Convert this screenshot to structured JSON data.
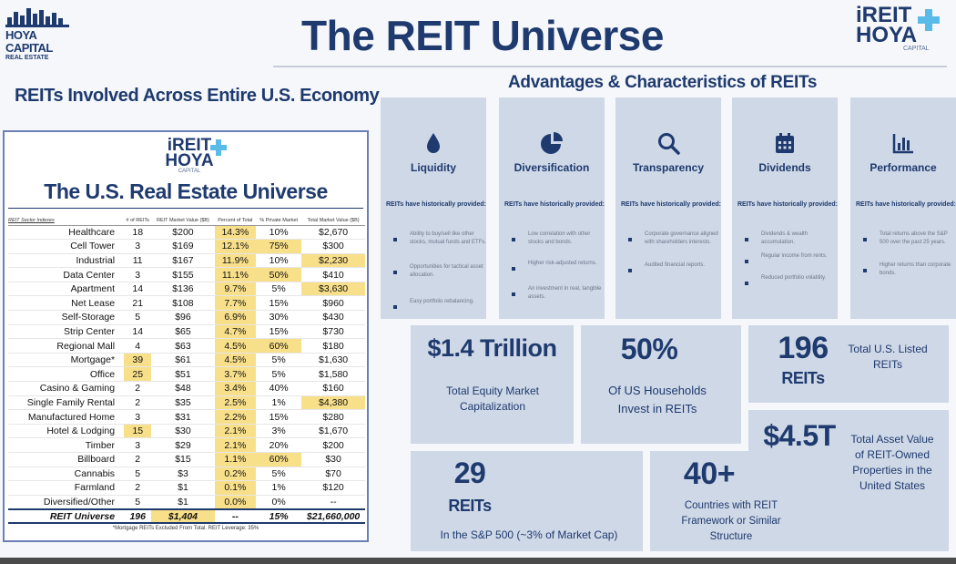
{
  "header": {
    "hoya_name": "HOYA CAPITAL",
    "hoya_sub": "REAL ESTATE",
    "title": "The REIT Universe",
    "logo_top": "iREIT",
    "logo_bottom": "HOYA",
    "logo_caption": "CAPITAL"
  },
  "left_heading": "REITs Involved Across Entire U.S. Economy",
  "right_heading": "Advantages & Characteristics of REITs",
  "table_panel": {
    "logo_top": "iREIT",
    "logo_bottom": "HOYA",
    "logo_caption": "CAPITAL",
    "title": "The U.S. Real Estate Universe",
    "columns": [
      "REIT Sector Indexes",
      "# of REITs",
      "REIT Market Value ($B)",
      "Percent of Total",
      "% Private Market",
      "Total Market Value ($B)"
    ],
    "rows": [
      {
        "sector": "Healthcare",
        "count": "18",
        "value": "$200",
        "pct": "14.3%",
        "private": "10%",
        "total": "$2,670"
      },
      {
        "sector": "Cell Tower",
        "count": "3",
        "value": "$169",
        "pct": "12.1%",
        "private": "75%",
        "total": "$300"
      },
      {
        "sector": "Industrial",
        "count": "11",
        "value": "$167",
        "pct": "11.9%",
        "private": "10%",
        "total": "$2,230"
      },
      {
        "sector": "Data Center",
        "count": "3",
        "value": "$155",
        "pct": "11.1%",
        "private": "50%",
        "total": "$410"
      },
      {
        "sector": "Apartment",
        "count": "14",
        "value": "$136",
        "pct": "9.7%",
        "private": "5%",
        "total": "$3,630"
      },
      {
        "sector": "Net Lease",
        "count": "21",
        "value": "$108",
        "pct": "7.7%",
        "private": "15%",
        "total": "$960"
      },
      {
        "sector": "Self-Storage",
        "count": "5",
        "value": "$96",
        "pct": "6.9%",
        "private": "30%",
        "total": "$430"
      },
      {
        "sector": "Strip Center",
        "count": "14",
        "value": "$65",
        "pct": "4.7%",
        "private": "15%",
        "total": "$730"
      },
      {
        "sector": "Regional Mall",
        "count": "4",
        "value": "$63",
        "pct": "4.5%",
        "private": "60%",
        "total": "$180"
      },
      {
        "sector": "Mortgage*",
        "count": "39",
        "value": "$61",
        "pct": "4.5%",
        "private": "5%",
        "total": "$1,630"
      },
      {
        "sector": "Office",
        "count": "25",
        "value": "$51",
        "pct": "3.7%",
        "private": "5%",
        "total": "$1,580"
      },
      {
        "sector": "Casino & Gaming",
        "count": "2",
        "value": "$48",
        "pct": "3.4%",
        "private": "40%",
        "total": "$160"
      },
      {
        "sector": "Single Family Rental",
        "count": "2",
        "value": "$35",
        "pct": "2.5%",
        "private": "1%",
        "total": "$4,380"
      },
      {
        "sector": "Manufactured Home",
        "count": "3",
        "value": "$31",
        "pct": "2.2%",
        "private": "15%",
        "total": "$280"
      },
      {
        "sector": "Hotel & Lodging",
        "count": "15",
        "value": "$30",
        "pct": "2.1%",
        "private": "3%",
        "total": "$1,670"
      },
      {
        "sector": "Timber",
        "count": "3",
        "value": "$29",
        "pct": "2.1%",
        "private": "20%",
        "total": "$200"
      },
      {
        "sector": "Billboard",
        "count": "2",
        "value": "$15",
        "pct": "1.1%",
        "private": "60%",
        "total": "$30"
      },
      {
        "sector": "Cannabis",
        "count": "5",
        "value": "$3",
        "pct": "0.2%",
        "private": "5%",
        "total": "$70"
      },
      {
        "sector": "Farmland",
        "count": "2",
        "value": "$1",
        "pct": "0.1%",
        "private": "1%",
        "total": "$120"
      },
      {
        "sector": "Diversified/Other",
        "count": "5",
        "value": "$1",
        "pct": "0.0%",
        "private": "0%",
        "total": "--"
      }
    ],
    "total_row": {
      "sector": "REIT Universe",
      "count": "196",
      "value": "$1,404",
      "pct": "--",
      "private": "15%",
      "total": "$21,660,000"
    },
    "footnote": "*Mortgage REITs Excluded From Total. REIT Leverage: 35%"
  },
  "cards": [
    {
      "name": "Liquidity",
      "icon": "droplet-icon",
      "provided": "REITs have historically provided:",
      "bullets": [
        "Ability to buy/sell like other stocks, mutual funds and ETFs.",
        "Opportunities for tactical asset allocation.",
        "Easy portfolio rebalancing."
      ]
    },
    {
      "name": "Diversification",
      "icon": "pie-chart-icon",
      "provided": "REITs have historically provided:",
      "bullets": [
        "Low correlation with other stocks and bonds.",
        "Higher risk-adjusted returns.",
        "An investment in real, tangible assets."
      ]
    },
    {
      "name": "Transparency",
      "icon": "magnifier-icon",
      "provided": "REITs have historically provided:",
      "bullets": [
        "Corporate governance aligned with shareholders interests.",
        "Audited financial reports."
      ]
    },
    {
      "name": "Dividends",
      "icon": "calendar-icon",
      "provided": "REITs have historically provided:",
      "bullets": [
        "Dividends & wealth accumulation.",
        "Regular income from rents.",
        "Reduced portfolio volatility."
      ]
    },
    {
      "name": "Performance",
      "icon": "bar-chart-icon",
      "provided": "REITs have historically provided:",
      "bullets": [
        "Total returns above the S&P 500 over the past 25 years.",
        "Higher returns than corporate bonds."
      ]
    }
  ],
  "stats": {
    "equity": {
      "value": "$1.4 Trillion",
      "label": "Total Equity Market Capitalization"
    },
    "households": {
      "value": "50%",
      "label": "Of US Households Invest in REITs"
    },
    "listed": {
      "value": "196",
      "value_sub": "REITs",
      "label": "Total U.S. Listed REITs"
    },
    "assets": {
      "value": "$4.5T",
      "label": "Total Asset Value of REIT-Owned Properties in the United States"
    },
    "sp500": {
      "value": "29",
      "value_sub": "REITs",
      "label": "In the S&P 500 (~3% of Market Cap)"
    },
    "countries": {
      "value": "40+",
      "label": "Countries with REIT Framework or Similar Structure"
    }
  }
}
